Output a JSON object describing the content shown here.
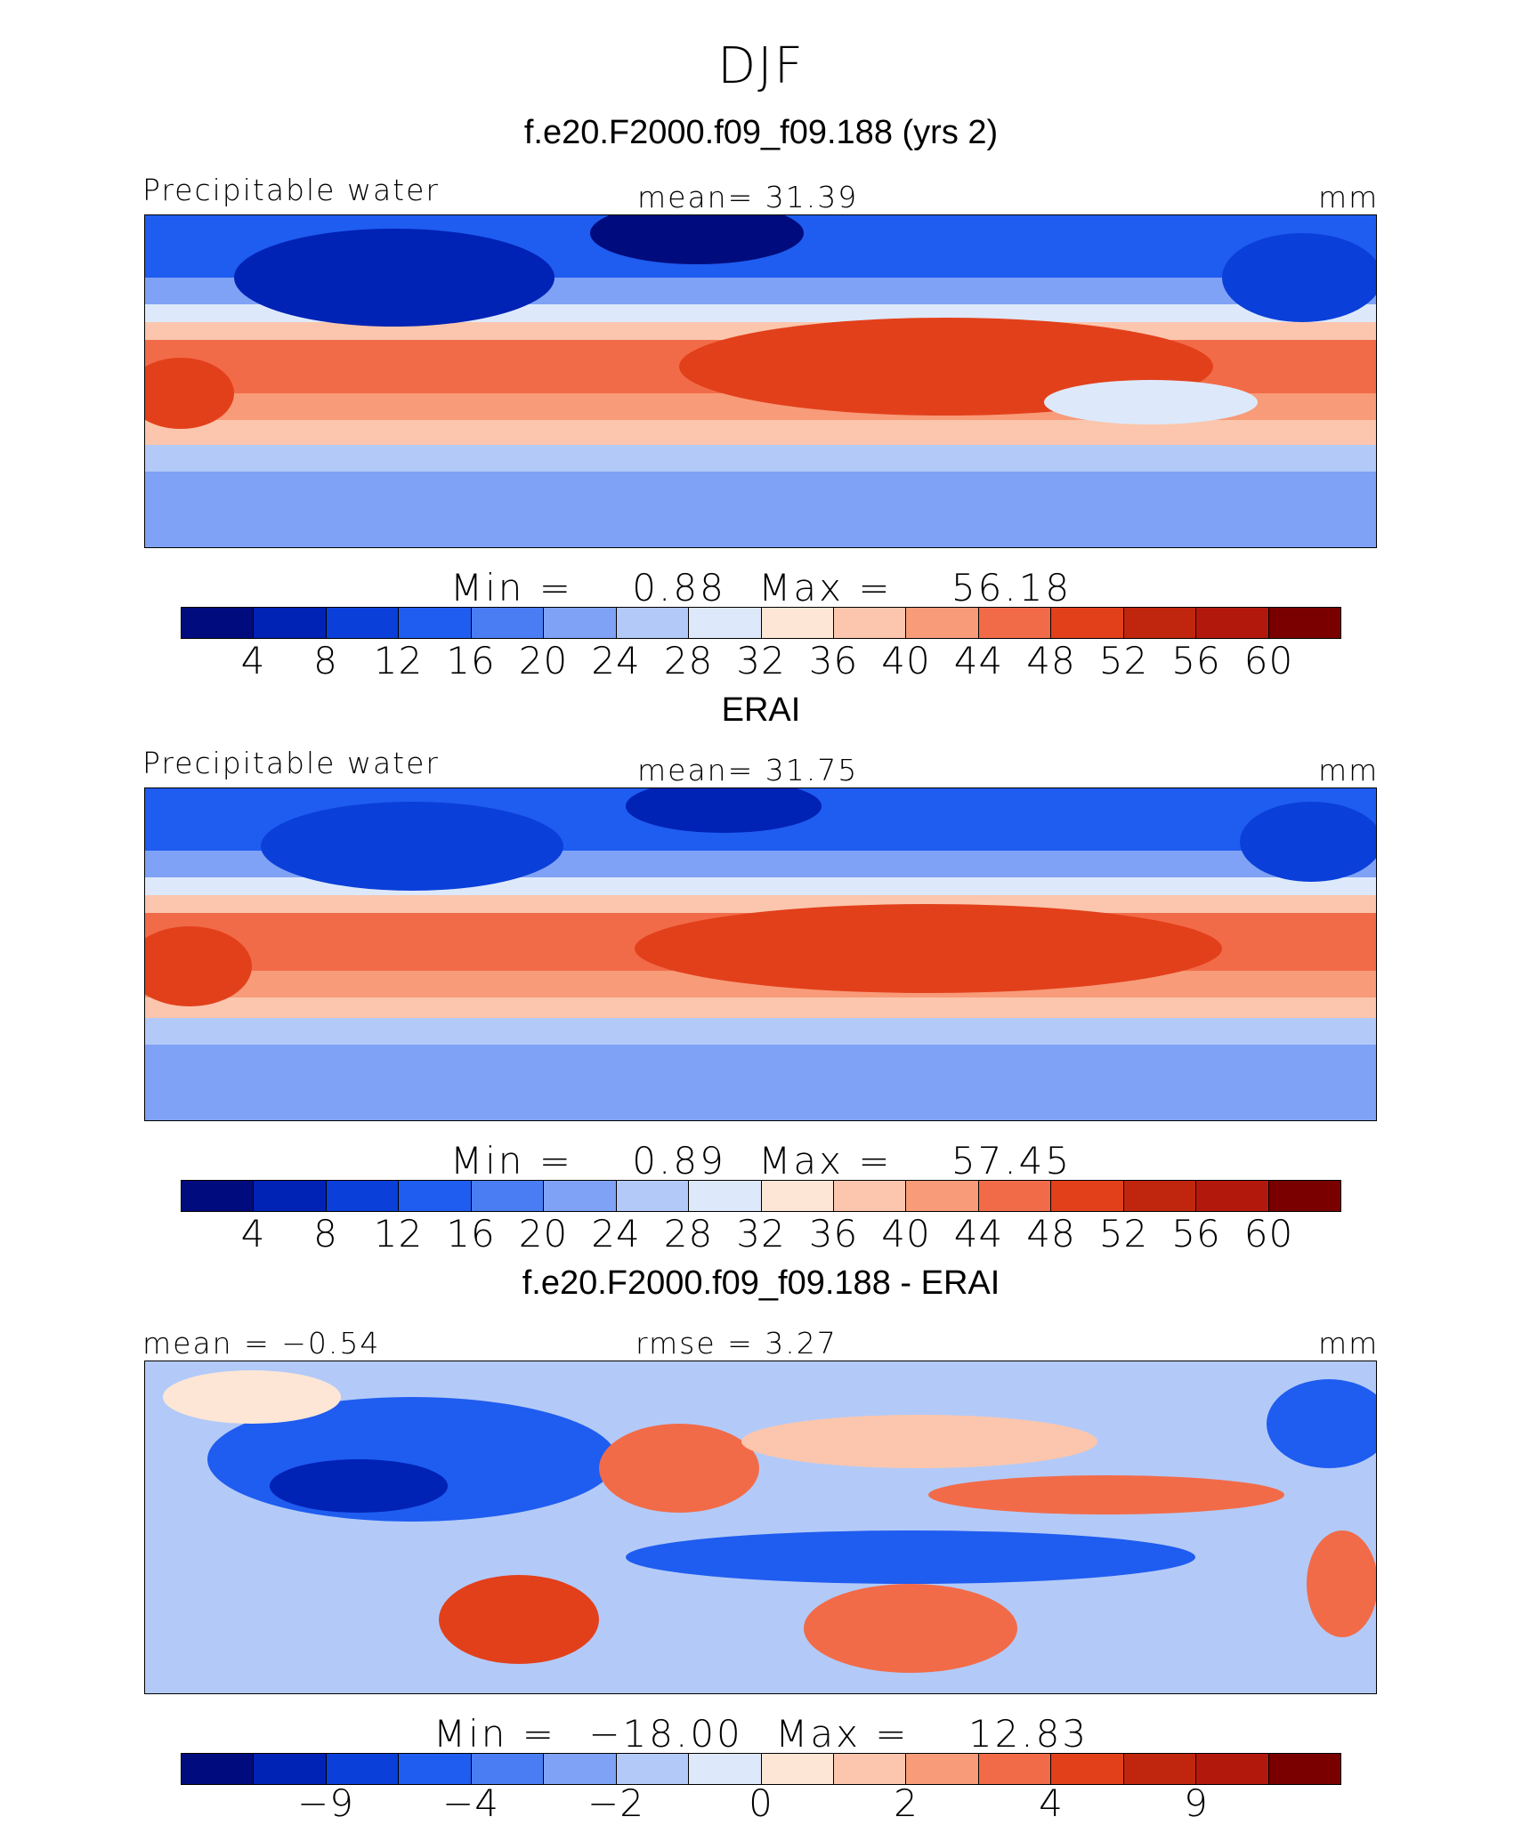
{
  "super_title": "DJF",
  "palette_abs": [
    "#000c7d",
    "#0022b5",
    "#0b3fd9",
    "#1f5cf0",
    "#4a7df3",
    "#7fa2f6",
    "#b3caf8",
    "#dde9fb",
    "#fde6d5",
    "#fbc6ad",
    "#f89b79",
    "#f26b48",
    "#e2401b",
    "#c0260d",
    "#b2190c",
    "#7a0000"
  ],
  "palette_diff": [
    "#000c7d",
    "#0022b5",
    "#0b3fd9",
    "#1f5cf0",
    "#4a7df3",
    "#7fa2f6",
    "#b3caf8",
    "#dde9fb",
    "#fde6d5",
    "#fbc6ad",
    "#f89b79",
    "#f26b48",
    "#e2401b",
    "#c0260d",
    "#b2190c",
    "#7a0000"
  ],
  "panels": [
    {
      "title": "f.e20.F2000.f09_f09.188 (yrs 2)",
      "left_label": "Precipitable water",
      "center_label": "mean=   31.39",
      "units": "mm",
      "min_label": "Min  =",
      "min_value": "0.88",
      "max_label": "Max  =",
      "max_value": "56.18",
      "colorbar_ticks": [
        "4",
        "8",
        "12",
        "16",
        "20",
        "24",
        "28",
        "32",
        "36",
        "40",
        "44",
        "48",
        "52",
        "56",
        "60"
      ]
    },
    {
      "title": "ERAI",
      "left_label": "Precipitable water",
      "center_label": "mean=   31.75",
      "units": "mm",
      "min_label": "Min  =",
      "min_value": "0.89",
      "max_label": "Max  =",
      "max_value": "57.45",
      "colorbar_ticks": [
        "4",
        "8",
        "12",
        "16",
        "20",
        "24",
        "28",
        "32",
        "36",
        "40",
        "44",
        "48",
        "52",
        "56",
        "60"
      ]
    },
    {
      "title": "f.e20.F2000.f09_f09.188 - ERAI",
      "left_label": "mean =   −0.54",
      "center_label": "rmse  =    3.27",
      "units": "mm",
      "min_label": "Min  =",
      "min_value": "−18.00",
      "max_label": "Max  =",
      "max_value": "12.83",
      "colorbar_ticks": [
        "−9",
        "−4",
        "−2",
        "0",
        "2",
        "4",
        "9"
      ]
    }
  ]
}
